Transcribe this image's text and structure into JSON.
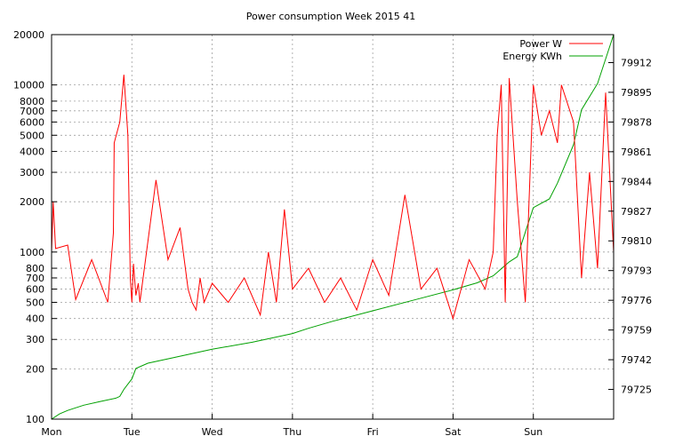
{
  "chart_data": {
    "type": "line",
    "title": "Power consumption Week 2015 41",
    "xlabel": "",
    "ylabel": "",
    "x_ticks": [
      "Mon",
      "Tue",
      "Wed",
      "Thu",
      "Fri",
      "Sat",
      "Sun"
    ],
    "y_scale": "log",
    "ylim": [
      100,
      20000
    ],
    "y_ticks": [
      100,
      200,
      300,
      400,
      500,
      600,
      700,
      800,
      1000,
      2000,
      3000,
      4000,
      5000,
      6000,
      7000,
      8000,
      10000,
      20000
    ],
    "y2lim": [
      79708,
      79928
    ],
    "y2_ticks": [
      79725,
      79742,
      79759,
      79776,
      79793,
      79810,
      79827,
      79844,
      79861,
      79878,
      79895,
      79912
    ],
    "grid": true,
    "legend_position": "top-right",
    "colors": {
      "power": "#ff0000",
      "energy": "#00a000"
    },
    "series": [
      {
        "name": "Power W",
        "axis": "left",
        "x": [
          0,
          0.02,
          0.05,
          0.2,
          0.3,
          0.5,
          0.7,
          0.77,
          0.78,
          0.85,
          0.9,
          0.95,
          0.98,
          1.0,
          1.02,
          1.05,
          1.08,
          1.1,
          1.3,
          1.45,
          1.6,
          1.7,
          1.75,
          1.8,
          1.85,
          1.9,
          2.0,
          2.2,
          2.4,
          2.6,
          2.7,
          2.8,
          2.9,
          3.0,
          3.2,
          3.4,
          3.6,
          3.8,
          4.0,
          4.2,
          4.4,
          4.6,
          4.8,
          5.0,
          5.2,
          5.4,
          5.5,
          5.55,
          5.6,
          5.65,
          5.7,
          5.8,
          5.9,
          6.0,
          6.1,
          6.2,
          6.3,
          6.35,
          6.5,
          6.6,
          6.7,
          6.8,
          6.9,
          7.0
        ],
        "y": [
          1000,
          2000,
          1050,
          1100,
          520,
          900,
          500,
          1300,
          4500,
          6000,
          11500,
          5000,
          700,
          500,
          850,
          550,
          650,
          500,
          2700,
          900,
          1400,
          600,
          500,
          450,
          700,
          500,
          650,
          500,
          700,
          420,
          1000,
          500,
          1800,
          600,
          800,
          500,
          700,
          450,
          900,
          550,
          2200,
          600,
          800,
          400,
          900,
          600,
          1000,
          5000,
          10000,
          500,
          11000,
          2000,
          500,
          10000,
          5000,
          7000,
          4500,
          10000,
          6000,
          700,
          3000,
          800,
          9000,
          1000
        ]
      },
      {
        "name": "Energy KWh",
        "axis": "right",
        "x": [
          0,
          0.1,
          0.2,
          0.4,
          0.6,
          0.8,
          0.85,
          0.9,
          0.95,
          1.0,
          1.05,
          1.2,
          1.5,
          2.0,
          2.5,
          3.0,
          3.2,
          3.5,
          4.0,
          4.5,
          5.0,
          5.3,
          5.5,
          5.6,
          5.7,
          5.8,
          6.0,
          6.2,
          6.3,
          6.5,
          6.6,
          6.8,
          7.0
        ],
        "y": [
          79708,
          79711,
          79713,
          79716,
          79718,
          79720,
          79721,
          79725,
          79728,
          79731,
          79737,
          79740,
          79743,
          79748,
          79752,
          79757,
          79760,
          79764,
          79770,
          79776,
          79782,
          79786,
          79790,
          79794,
          79798,
          79801,
          79829,
          79834,
          79843,
          79865,
          79885,
          79900,
          79928
        ]
      }
    ]
  }
}
